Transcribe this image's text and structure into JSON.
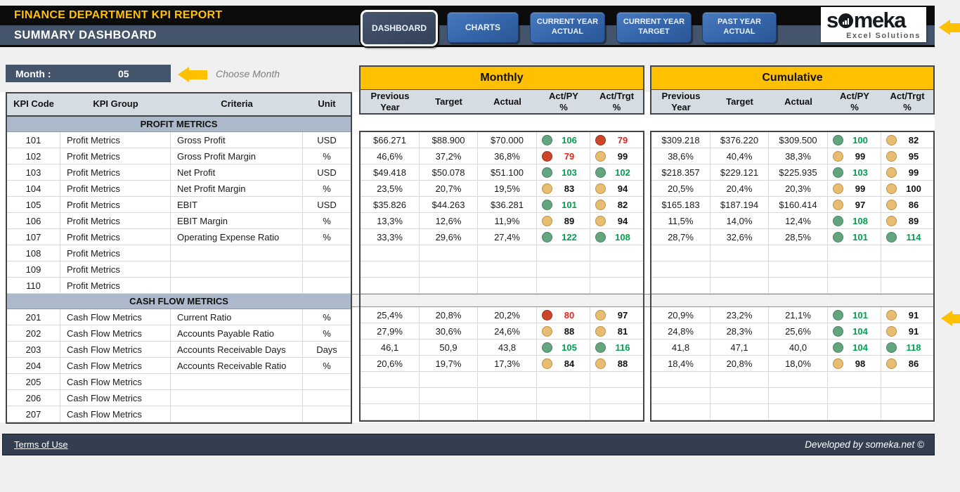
{
  "header": {
    "title": "FINANCE DEPARTMENT KPI REPORT",
    "subtitle": "SUMMARY DASHBOARD",
    "nav": [
      {
        "label": "DASHBOARD",
        "active": true
      },
      {
        "label": "CHARTS",
        "active": false
      },
      {
        "label": "CURRENT YEAR ACTUAL",
        "active": false
      },
      {
        "label": "CURRENT YEAR TARGET",
        "active": false
      },
      {
        "label": "PAST YEAR ACTUAL",
        "active": false
      }
    ],
    "logo": {
      "brand": "someka",
      "tagline": "Excel Solutions"
    }
  },
  "month": {
    "label": "Month :",
    "value": "05",
    "hint": "Choose Month"
  },
  "table": {
    "left_headers": [
      "KPI Code",
      "KPI Group",
      "Criteria",
      "Unit"
    ],
    "monthly_title": "Monthly",
    "cumulative_title": "Cumulative",
    "value_headers": [
      "Previous\nYear",
      "Target",
      "Actual",
      "Act/PY\n%",
      "Act/Trgt\n%"
    ],
    "sections": [
      {
        "title": "PROFIT METRICS",
        "rows": [
          {
            "code": "101",
            "group": "Profit Metrics",
            "criteria": "Gross Profit",
            "unit": "USD",
            "monthly": {
              "py": "$66.271",
              "target": "$88.900",
              "actual": "$70.000",
              "act_py": {
                "v": "106",
                "s": "green"
              },
              "act_trgt": {
                "v": "79",
                "s": "red"
              }
            },
            "cumulative": {
              "py": "$309.218",
              "target": "$376.220",
              "actual": "$309.500",
              "act_py": {
                "v": "100",
                "s": "green"
              },
              "act_trgt": {
                "v": "82",
                "s": "amber"
              }
            }
          },
          {
            "code": "102",
            "group": "Profit Metrics",
            "criteria": "Gross Profit Margin",
            "unit": "%",
            "monthly": {
              "py": "46,6%",
              "target": "37,2%",
              "actual": "36,8%",
              "act_py": {
                "v": "79",
                "s": "red"
              },
              "act_trgt": {
                "v": "99",
                "s": "amber"
              }
            },
            "cumulative": {
              "py": "38,6%",
              "target": "40,4%",
              "actual": "38,3%",
              "act_py": {
                "v": "99",
                "s": "amber"
              },
              "act_trgt": {
                "v": "95",
                "s": "amber"
              }
            }
          },
          {
            "code": "103",
            "group": "Profit Metrics",
            "criteria": "Net Profit",
            "unit": "USD",
            "monthly": {
              "py": "$49.418",
              "target": "$50.078",
              "actual": "$51.100",
              "act_py": {
                "v": "103",
                "s": "green"
              },
              "act_trgt": {
                "v": "102",
                "s": "green"
              }
            },
            "cumulative": {
              "py": "$218.357",
              "target": "$229.121",
              "actual": "$225.935",
              "act_py": {
                "v": "103",
                "s": "green"
              },
              "act_trgt": {
                "v": "99",
                "s": "amber"
              }
            }
          },
          {
            "code": "104",
            "group": "Profit Metrics",
            "criteria": "Net Profit Margin",
            "unit": "%",
            "monthly": {
              "py": "23,5%",
              "target": "20,7%",
              "actual": "19,5%",
              "act_py": {
                "v": "83",
                "s": "amber"
              },
              "act_trgt": {
                "v": "94",
                "s": "amber"
              }
            },
            "cumulative": {
              "py": "20,5%",
              "target": "20,4%",
              "actual": "20,3%",
              "act_py": {
                "v": "99",
                "s": "amber"
              },
              "act_trgt": {
                "v": "100",
                "s": "amber"
              }
            }
          },
          {
            "code": "105",
            "group": "Profit Metrics",
            "criteria": "EBIT",
            "unit": "USD",
            "monthly": {
              "py": "$35.826",
              "target": "$44.263",
              "actual": "$36.281",
              "act_py": {
                "v": "101",
                "s": "green"
              },
              "act_trgt": {
                "v": "82",
                "s": "amber"
              }
            },
            "cumulative": {
              "py": "$165.183",
              "target": "$187.194",
              "actual": "$160.414",
              "act_py": {
                "v": "97",
                "s": "amber"
              },
              "act_trgt": {
                "v": "86",
                "s": "amber"
              }
            }
          },
          {
            "code": "106",
            "group": "Profit Metrics",
            "criteria": "EBIT Margin",
            "unit": "%",
            "monthly": {
              "py": "13,3%",
              "target": "12,6%",
              "actual": "11,9%",
              "act_py": {
                "v": "89",
                "s": "amber"
              },
              "act_trgt": {
                "v": "94",
                "s": "amber"
              }
            },
            "cumulative": {
              "py": "11,5%",
              "target": "14,0%",
              "actual": "12,4%",
              "act_py": {
                "v": "108",
                "s": "green"
              },
              "act_trgt": {
                "v": "89",
                "s": "amber"
              }
            }
          },
          {
            "code": "107",
            "group": "Profit Metrics",
            "criteria": "Operating Expense Ratio",
            "unit": "%",
            "monthly": {
              "py": "33,3%",
              "target": "29,6%",
              "actual": "27,4%",
              "act_py": {
                "v": "122",
                "s": "green"
              },
              "act_trgt": {
                "v": "108",
                "s": "green"
              }
            },
            "cumulative": {
              "py": "28,7%",
              "target": "32,6%",
              "actual": "28,5%",
              "act_py": {
                "v": "101",
                "s": "green"
              },
              "act_trgt": {
                "v": "114",
                "s": "green"
              }
            }
          },
          {
            "code": "108",
            "group": "Profit Metrics",
            "criteria": "",
            "unit": "",
            "monthly": {
              "py": "",
              "target": "",
              "actual": "",
              "act_py": {
                "v": "",
                "s": ""
              },
              "act_trgt": {
                "v": "",
                "s": ""
              }
            },
            "cumulative": {
              "py": "",
              "target": "",
              "actual": "",
              "act_py": {
                "v": "",
                "s": ""
              },
              "act_trgt": {
                "v": "",
                "s": ""
              }
            }
          },
          {
            "code": "109",
            "group": "Profit Metrics",
            "criteria": "",
            "unit": "",
            "monthly": {
              "py": "",
              "target": "",
              "actual": "",
              "act_py": {
                "v": "",
                "s": ""
              },
              "act_trgt": {
                "v": "",
                "s": ""
              }
            },
            "cumulative": {
              "py": "",
              "target": "",
              "actual": "",
              "act_py": {
                "v": "",
                "s": ""
              },
              "act_trgt": {
                "v": "",
                "s": ""
              }
            }
          },
          {
            "code": "110",
            "group": "Profit Metrics",
            "criteria": "",
            "unit": "",
            "monthly": {
              "py": "",
              "target": "",
              "actual": "",
              "act_py": {
                "v": "",
                "s": ""
              },
              "act_trgt": {
                "v": "",
                "s": ""
              }
            },
            "cumulative": {
              "py": "",
              "target": "",
              "actual": "",
              "act_py": {
                "v": "",
                "s": ""
              },
              "act_trgt": {
                "v": "",
                "s": ""
              }
            }
          }
        ]
      },
      {
        "title": "CASH FLOW METRICS",
        "rows": [
          {
            "code": "201",
            "group": "Cash Flow Metrics",
            "criteria": "Current Ratio",
            "unit": "%",
            "monthly": {
              "py": "25,4%",
              "target": "20,8%",
              "actual": "20,2%",
              "act_py": {
                "v": "80",
                "s": "red"
              },
              "act_trgt": {
                "v": "97",
                "s": "amber"
              }
            },
            "cumulative": {
              "py": "20,9%",
              "target": "23,2%",
              "actual": "21,1%",
              "act_py": {
                "v": "101",
                "s": "green"
              },
              "act_trgt": {
                "v": "91",
                "s": "amber"
              }
            }
          },
          {
            "code": "202",
            "group": "Cash Flow Metrics",
            "criteria": "Accounts Payable Ratio",
            "unit": "%",
            "monthly": {
              "py": "27,9%",
              "target": "30,6%",
              "actual": "24,6%",
              "act_py": {
                "v": "88",
                "s": "amber"
              },
              "act_trgt": {
                "v": "81",
                "s": "amber"
              }
            },
            "cumulative": {
              "py": "24,8%",
              "target": "28,3%",
              "actual": "25,6%",
              "act_py": {
                "v": "104",
                "s": "green"
              },
              "act_trgt": {
                "v": "91",
                "s": "amber"
              }
            }
          },
          {
            "code": "203",
            "group": "Cash Flow Metrics",
            "criteria": "Accounts Receivable Days",
            "unit": "Days",
            "monthly": {
              "py": "46,1",
              "target": "50,9",
              "actual": "43,8",
              "act_py": {
                "v": "105",
                "s": "green"
              },
              "act_trgt": {
                "v": "116",
                "s": "green"
              }
            },
            "cumulative": {
              "py": "41,8",
              "target": "47,1",
              "actual": "40,0",
              "act_py": {
                "v": "104",
                "s": "green"
              },
              "act_trgt": {
                "v": "118",
                "s": "green"
              }
            }
          },
          {
            "code": "204",
            "group": "Cash Flow Metrics",
            "criteria": "Accounts Receivable Ratio",
            "unit": "%",
            "monthly": {
              "py": "20,6%",
              "target": "19,7%",
              "actual": "17,3%",
              "act_py": {
                "v": "84",
                "s": "amber"
              },
              "act_trgt": {
                "v": "88",
                "s": "amber"
              }
            },
            "cumulative": {
              "py": "18,4%",
              "target": "20,8%",
              "actual": "18,0%",
              "act_py": {
                "v": "98",
                "s": "amber"
              },
              "act_trgt": {
                "v": "86",
                "s": "amber"
              }
            }
          },
          {
            "code": "205",
            "group": "Cash Flow Metrics",
            "criteria": "",
            "unit": "",
            "monthly": {
              "py": "",
              "target": "",
              "actual": "",
              "act_py": {
                "v": "",
                "s": ""
              },
              "act_trgt": {
                "v": "",
                "s": ""
              }
            },
            "cumulative": {
              "py": "",
              "target": "",
              "actual": "",
              "act_py": {
                "v": "",
                "s": ""
              },
              "act_trgt": {
                "v": "",
                "s": ""
              }
            }
          },
          {
            "code": "206",
            "group": "Cash Flow Metrics",
            "criteria": "",
            "unit": "",
            "monthly": {
              "py": "",
              "target": "",
              "actual": "",
              "act_py": {
                "v": "",
                "s": ""
              },
              "act_trgt": {
                "v": "",
                "s": ""
              }
            },
            "cumulative": {
              "py": "",
              "target": "",
              "actual": "",
              "act_py": {
                "v": "",
                "s": ""
              },
              "act_trgt": {
                "v": "",
                "s": ""
              }
            }
          },
          {
            "code": "207",
            "group": "Cash Flow Metrics",
            "criteria": "",
            "unit": "",
            "monthly": {
              "py": "",
              "target": "",
              "actual": "",
              "act_py": {
                "v": "",
                "s": ""
              },
              "act_trgt": {
                "v": "",
                "s": ""
              }
            },
            "cumulative": {
              "py": "",
              "target": "",
              "actual": "",
              "act_py": {
                "v": "",
                "s": ""
              },
              "act_trgt": {
                "v": "",
                "s": ""
              }
            }
          }
        ]
      }
    ]
  },
  "footer": {
    "left": "Terms of Use",
    "right": "Developed by someka.net ©"
  },
  "colors": {
    "accent_yellow": "#FFC000",
    "bar_slate": "#44546A",
    "footer_bar": "#333F50",
    "button_blue": "#3A6CB4",
    "active_button": "#3A4960",
    "status_green": "#63A57F",
    "status_red": "#CB4629",
    "status_amber": "#E8BD72",
    "green_text": "#00A24F",
    "red_text": "#E3261D"
  }
}
